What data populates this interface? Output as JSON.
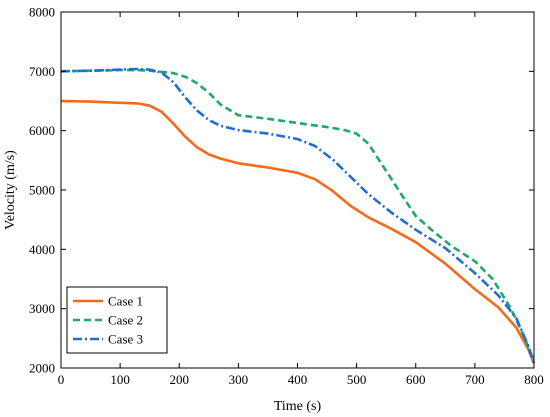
{
  "chart_data": {
    "type": "line",
    "title": "",
    "xlabel": "Time (s)",
    "ylabel": "Velocity (m/s)",
    "xlim": [
      0,
      800
    ],
    "ylim": [
      2000,
      8000
    ],
    "xticks": [
      0,
      100,
      200,
      300,
      400,
      500,
      600,
      700,
      800
    ],
    "yticks": [
      2000,
      3000,
      4000,
      5000,
      6000,
      7000,
      8000
    ],
    "xtick_labels": [
      "0",
      "100",
      "200",
      "300",
      "400",
      "500",
      "600",
      "700",
      "800"
    ],
    "ytick_labels": [
      "2000",
      "3000",
      "4000",
      "5000",
      "6000",
      "7000",
      "8000"
    ],
    "grid": false,
    "legend_position": "bottom-left",
    "series": [
      {
        "name": "Case 1",
        "color": "#F26B1D",
        "style": "solid",
        "x": [
          0,
          50,
          100,
          130,
          150,
          170,
          190,
          210,
          230,
          250,
          270,
          300,
          350,
          400,
          430,
          460,
          490,
          520,
          560,
          600,
          650,
          700,
          740,
          770,
          790,
          800
        ],
        "y": [
          6500,
          6490,
          6470,
          6460,
          6420,
          6320,
          6120,
          5900,
          5720,
          5600,
          5530,
          5450,
          5380,
          5290,
          5180,
          4980,
          4730,
          4540,
          4340,
          4120,
          3760,
          3330,
          3020,
          2680,
          2320,
          2080
        ]
      },
      {
        "name": "Case 2",
        "color": "#1EA96B",
        "style": "dashed",
        "x": [
          0,
          50,
          100,
          130,
          150,
          170,
          190,
          210,
          230,
          250,
          270,
          300,
          350,
          400,
          450,
          480,
          500,
          520,
          550,
          580,
          600,
          630,
          660,
          700,
          730,
          760,
          780,
          800
        ],
        "y": [
          7000,
          7010,
          7020,
          7020,
          7010,
          6990,
          6970,
          6910,
          6800,
          6640,
          6440,
          6260,
          6200,
          6130,
          6060,
          6010,
          5950,
          5780,
          5320,
          4860,
          4560,
          4300,
          4060,
          3800,
          3500,
          3020,
          2600,
          2120
        ]
      },
      {
        "name": "Case 3",
        "color": "#1F6ED4",
        "style": "dashdot",
        "x": [
          0,
          50,
          100,
          130,
          150,
          170,
          190,
          210,
          230,
          250,
          270,
          300,
          350,
          400,
          430,
          460,
          490,
          520,
          560,
          600,
          650,
          700,
          740,
          770,
          790,
          800
        ],
        "y": [
          7000,
          7010,
          7030,
          7040,
          7030,
          6980,
          6820,
          6560,
          6340,
          6180,
          6080,
          6010,
          5950,
          5860,
          5740,
          5510,
          5220,
          4930,
          4610,
          4330,
          4020,
          3600,
          3220,
          2840,
          2380,
          2060
        ]
      }
    ]
  }
}
